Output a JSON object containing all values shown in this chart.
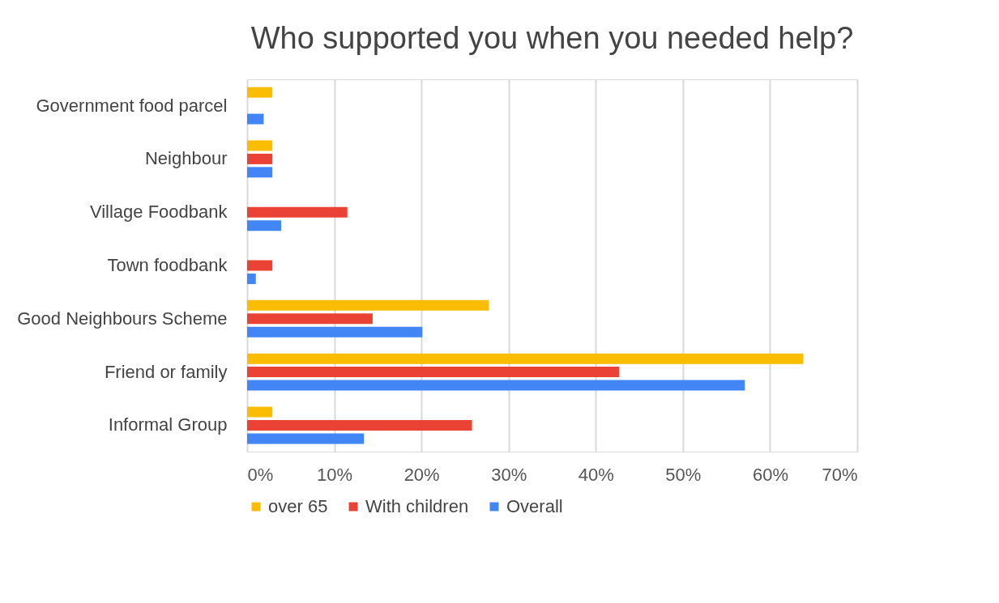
{
  "chart_data": {
    "type": "bar",
    "orientation": "horizontal",
    "title": "Who supported you when  you needed help?",
    "categories": [
      "Government food parcel",
      "Neighbour",
      "Village Foodbank",
      "Town foodbank",
      "Good Neighbours Scheme",
      "Friend or family",
      "Informal Group"
    ],
    "series": [
      {
        "name": "over 65",
        "color": "#fbbc04",
        "values": [
          2.9,
          2.9,
          null,
          null,
          27.7,
          63.8,
          2.9
        ]
      },
      {
        "name": "With children",
        "color": "#ea4335",
        "values": [
          null,
          2.9,
          11.5,
          2.9,
          14.4,
          42.7,
          25.8
        ]
      },
      {
        "name": "Overall",
        "color": "#4285f4",
        "values": [
          1.9,
          2.9,
          3.9,
          1.0,
          20.1,
          57.1,
          13.4
        ]
      }
    ],
    "xlim": [
      0,
      70
    ],
    "xticks": [
      {
        "value": 0,
        "label": "0%"
      },
      {
        "value": 10,
        "label": "10%"
      },
      {
        "value": 20,
        "label": "20%"
      },
      {
        "value": 30,
        "label": "30%"
      },
      {
        "value": 40,
        "label": "40%"
      },
      {
        "value": 50,
        "label": "50%"
      },
      {
        "value": 60,
        "label": "60%"
      },
      {
        "value": 70,
        "label": "70%"
      }
    ],
    "grid": "x",
    "legend": "bottom"
  }
}
